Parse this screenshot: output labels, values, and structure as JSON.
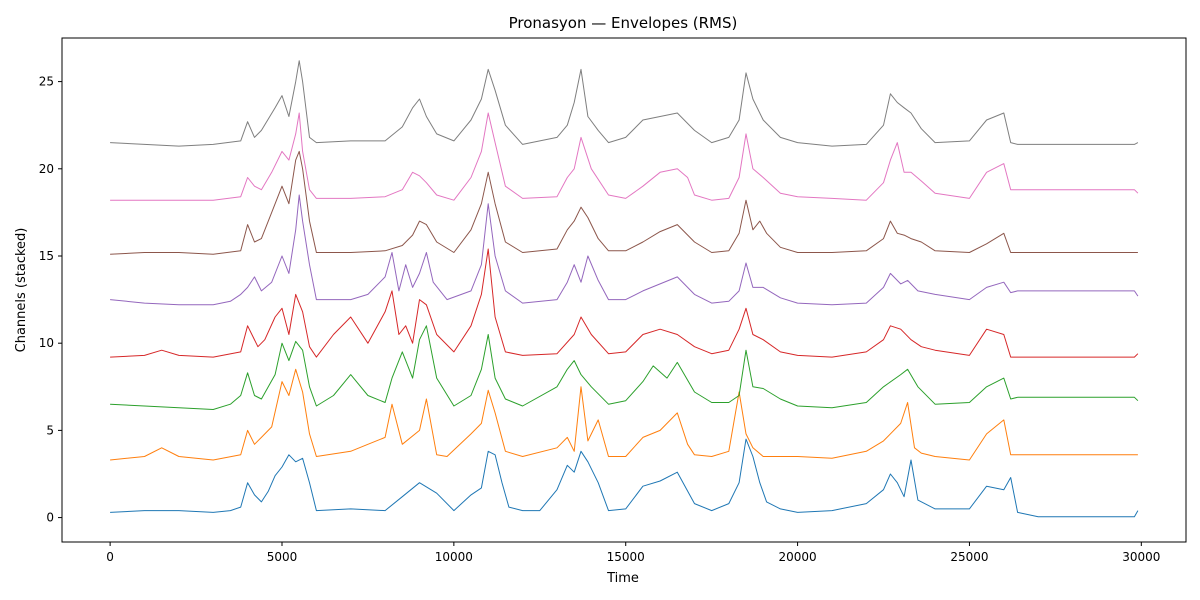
{
  "chart_data": {
    "type": "line",
    "title": "Pronasyon — Envelopes (RMS)",
    "xlabel": "Time",
    "ylabel": "Channels (stacked)",
    "xlim": [
      -1400,
      31300
    ],
    "ylim": [
      -1.4,
      27.5
    ],
    "xticks": [
      0,
      5000,
      10000,
      15000,
      20000,
      25000,
      30000
    ],
    "yticks": [
      0,
      5,
      10,
      15,
      20,
      25
    ],
    "grid": false,
    "series": [
      {
        "color": "#1f77b4",
        "x": [
          0,
          1000,
          2000,
          3000,
          3500,
          3800,
          4000,
          4200,
          4400,
          4600,
          4800,
          5000,
          5200,
          5400,
          5600,
          5800,
          6000,
          7000,
          8000,
          8500,
          9000,
          9500,
          10000,
          10500,
          10800,
          11000,
          11200,
          11400,
          11600,
          12000,
          12500,
          13000,
          13300,
          13500,
          13700,
          13900,
          14200,
          14500,
          15000,
          15500,
          16000,
          16500,
          17000,
          17500,
          18000,
          18300,
          18500,
          18700,
          18900,
          19100,
          19500,
          20000,
          21000,
          22000,
          22500,
          22700,
          22900,
          23100,
          23300,
          23500,
          24000,
          25000,
          25500,
          26000,
          26200,
          26400,
          27000,
          29800,
          29900
        ],
        "values": [
          0.3,
          0.4,
          0.4,
          0.3,
          0.4,
          0.6,
          2.0,
          1.3,
          0.9,
          1.5,
          2.4,
          2.9,
          3.6,
          3.2,
          3.4,
          2.0,
          0.4,
          0.5,
          0.4,
          1.2,
          2.0,
          1.4,
          0.4,
          1.3,
          1.7,
          3.8,
          3.6,
          2.0,
          0.6,
          0.4,
          0.4,
          1.6,
          3.0,
          2.6,
          3.8,
          3.2,
          2.0,
          0.4,
          0.5,
          1.8,
          2.1,
          2.6,
          0.8,
          0.4,
          0.8,
          2.0,
          4.5,
          3.5,
          2.0,
          0.9,
          0.5,
          0.3,
          0.4,
          0.8,
          1.6,
          2.5,
          2.0,
          1.2,
          3.3,
          1.0,
          0.5,
          0.5,
          1.8,
          1.6,
          2.3,
          0.3,
          0.05,
          0.05,
          0.4
        ]
      },
      {
        "color": "#ff7f0e",
        "x": [
          0,
          1000,
          1500,
          2000,
          3000,
          3800,
          4000,
          4200,
          4400,
          4700,
          5000,
          5200,
          5400,
          5600,
          5800,
          6000,
          7000,
          7500,
          8000,
          8200,
          8500,
          9000,
          9200,
          9500,
          9800,
          10500,
          10800,
          11000,
          11200,
          11500,
          12000,
          13000,
          13300,
          13500,
          13700,
          13900,
          14200,
          14500,
          15000,
          15500,
          16000,
          16500,
          16800,
          17000,
          17500,
          18000,
          18300,
          18500,
          18700,
          19000,
          19500,
          20000,
          21000,
          22000,
          22500,
          23000,
          23200,
          23400,
          23600,
          24000,
          25000,
          25500,
          26000,
          26200,
          26500,
          29900
        ],
        "values": [
          3.3,
          3.5,
          4.0,
          3.5,
          3.3,
          3.6,
          5.0,
          4.2,
          4.6,
          5.2,
          7.8,
          7.0,
          8.5,
          7.2,
          4.8,
          3.5,
          3.8,
          4.2,
          4.6,
          6.5,
          4.2,
          5.0,
          6.8,
          3.6,
          3.5,
          4.8,
          5.4,
          7.3,
          6.0,
          3.8,
          3.5,
          4.0,
          4.6,
          3.8,
          7.5,
          4.4,
          5.6,
          3.5,
          3.5,
          4.6,
          5.0,
          6.0,
          4.2,
          3.6,
          3.5,
          3.8,
          7.2,
          4.8,
          4.0,
          3.5,
          3.5,
          3.5,
          3.4,
          3.8,
          4.4,
          5.4,
          6.6,
          4.0,
          3.7,
          3.5,
          3.3,
          4.8,
          5.6,
          3.6,
          3.6,
          3.6
        ]
      },
      {
        "color": "#2ca02c",
        "x": [
          0,
          1000,
          2000,
          3000,
          3500,
          3800,
          4000,
          4200,
          4400,
          4800,
          5000,
          5200,
          5400,
          5600,
          5800,
          6000,
          6500,
          7000,
          7500,
          8000,
          8200,
          8500,
          8800,
          9000,
          9200,
          9500,
          10000,
          10500,
          10800,
          11000,
          11200,
          11500,
          12000,
          13000,
          13300,
          13500,
          13700,
          14000,
          14500,
          15000,
          15500,
          15800,
          16200,
          16500,
          17000,
          17500,
          18000,
          18300,
          18500,
          18700,
          19000,
          19500,
          20000,
          21000,
          22000,
          22500,
          23000,
          23200,
          23500,
          24000,
          25000,
          25500,
          26000,
          26200,
          26400,
          27000,
          29800,
          29900
        ],
        "values": [
          6.5,
          6.4,
          6.3,
          6.2,
          6.5,
          7.0,
          8.3,
          7.0,
          6.8,
          8.2,
          10.0,
          9.0,
          10.1,
          9.6,
          7.5,
          6.4,
          7.0,
          8.2,
          7.0,
          6.6,
          8.0,
          9.5,
          8.0,
          10.2,
          11.0,
          8.0,
          6.4,
          7.0,
          8.5,
          10.5,
          8.0,
          6.8,
          6.4,
          7.5,
          8.5,
          9.0,
          8.2,
          7.5,
          6.5,
          6.7,
          7.8,
          8.7,
          8.0,
          8.9,
          7.2,
          6.6,
          6.6,
          7.0,
          9.6,
          7.5,
          7.4,
          6.8,
          6.4,
          6.3,
          6.6,
          7.5,
          8.2,
          8.5,
          7.5,
          6.5,
          6.6,
          7.5,
          8.0,
          6.8,
          6.9,
          6.9,
          6.9,
          6.7
        ]
      },
      {
        "color": "#d62728",
        "x": [
          0,
          1000,
          1500,
          2000,
          3000,
          3800,
          4000,
          4300,
          4500,
          4800,
          5000,
          5200,
          5400,
          5600,
          5800,
          6000,
          6500,
          7000,
          7500,
          8000,
          8200,
          8400,
          8600,
          8800,
          9000,
          9200,
          9500,
          10000,
          10500,
          10800,
          11000,
          11200,
          11500,
          12000,
          13000,
          13500,
          13700,
          14000,
          14500,
          15000,
          15500,
          16000,
          16500,
          17000,
          17500,
          18000,
          18300,
          18500,
          18700,
          19000,
          19500,
          20000,
          21000,
          22000,
          22500,
          22700,
          23000,
          23300,
          23600,
          24000,
          25000,
          25500,
          26000,
          26200,
          26400,
          29800,
          29900
        ],
        "values": [
          9.2,
          9.3,
          9.6,
          9.3,
          9.2,
          9.5,
          11.0,
          9.8,
          10.2,
          11.5,
          12.0,
          10.5,
          12.8,
          11.8,
          9.8,
          9.2,
          10.5,
          11.5,
          10.0,
          11.8,
          13.0,
          10.5,
          11.0,
          10.0,
          12.5,
          12.2,
          10.5,
          9.5,
          11.0,
          12.8,
          15.4,
          11.5,
          9.5,
          9.3,
          9.4,
          10.5,
          11.5,
          10.5,
          9.4,
          9.5,
          10.5,
          10.8,
          10.5,
          9.8,
          9.4,
          9.6,
          10.8,
          12.0,
          10.5,
          10.2,
          9.5,
          9.3,
          9.2,
          9.5,
          10.2,
          11.0,
          10.8,
          10.2,
          9.8,
          9.6,
          9.3,
          10.8,
          10.5,
          9.2,
          9.2,
          9.2,
          9.4
        ]
      },
      {
        "color": "#9467bd",
        "x": [
          0,
          1000,
          2000,
          3000,
          3500,
          3800,
          4000,
          4200,
          4400,
          4700,
          5000,
          5200,
          5400,
          5500,
          5600,
          5800,
          6000,
          7000,
          7500,
          8000,
          8200,
          8400,
          8600,
          8800,
          9000,
          9200,
          9400,
          9800,
          10500,
          10800,
          11000,
          11200,
          11500,
          12000,
          13000,
          13300,
          13500,
          13700,
          13900,
          14200,
          14500,
          15000,
          15500,
          16000,
          16500,
          17000,
          17500,
          18000,
          18300,
          18500,
          18700,
          19000,
          19500,
          20000,
          21000,
          22000,
          22500,
          22700,
          23000,
          23200,
          23500,
          24000,
          25000,
          25500,
          26000,
          26200,
          26400,
          29800,
          29900
        ],
        "values": [
          12.5,
          12.3,
          12.2,
          12.2,
          12.4,
          12.8,
          13.2,
          13.8,
          13.0,
          13.5,
          15.0,
          14.0,
          16.5,
          18.5,
          17.0,
          14.5,
          12.5,
          12.5,
          12.8,
          13.8,
          15.2,
          13.0,
          14.5,
          13.2,
          14.0,
          15.2,
          13.5,
          12.5,
          13.0,
          14.5,
          18.0,
          15.0,
          13.0,
          12.3,
          12.5,
          13.5,
          14.5,
          13.5,
          15.0,
          13.6,
          12.5,
          12.5,
          13.0,
          13.4,
          13.8,
          12.8,
          12.3,
          12.4,
          13.0,
          14.6,
          13.2,
          13.2,
          12.6,
          12.3,
          12.2,
          12.3,
          13.2,
          14.0,
          13.4,
          13.6,
          13.0,
          12.8,
          12.5,
          13.2,
          13.5,
          12.9,
          13.0,
          13.0,
          12.7
        ]
      },
      {
        "color": "#8c564b",
        "x": [
          0,
          1000,
          2000,
          3000,
          3800,
          4000,
          4200,
          4400,
          4700,
          5000,
          5200,
          5400,
          5500,
          5600,
          5800,
          6000,
          7000,
          8000,
          8500,
          8800,
          9000,
          9200,
          9500,
          10000,
          10500,
          10800,
          11000,
          11200,
          11500,
          12000,
          13000,
          13300,
          13500,
          13700,
          13900,
          14200,
          14500,
          15000,
          15500,
          16000,
          16500,
          17000,
          17500,
          18000,
          18300,
          18500,
          18700,
          18900,
          19100,
          19500,
          20000,
          21000,
          22000,
          22500,
          22700,
          22900,
          23100,
          23300,
          23600,
          24000,
          25000,
          25500,
          26000,
          26200,
          26400,
          29800,
          29900
        ],
        "values": [
          15.1,
          15.2,
          15.2,
          15.1,
          15.3,
          16.8,
          15.8,
          16.0,
          17.5,
          19.0,
          18.0,
          20.5,
          21.0,
          20.0,
          17.0,
          15.2,
          15.2,
          15.3,
          15.6,
          16.2,
          17.0,
          16.8,
          15.8,
          15.2,
          16.5,
          18.0,
          19.8,
          18.0,
          15.8,
          15.2,
          15.4,
          16.5,
          17.0,
          17.8,
          17.2,
          16.0,
          15.3,
          15.3,
          15.8,
          16.4,
          16.8,
          15.8,
          15.2,
          15.3,
          16.3,
          18.2,
          16.5,
          17.0,
          16.3,
          15.5,
          15.2,
          15.2,
          15.3,
          16.0,
          17.0,
          16.3,
          16.2,
          16.0,
          15.8,
          15.3,
          15.2,
          15.7,
          16.3,
          15.2,
          15.2,
          15.2,
          15.2
        ]
      },
      {
        "color": "#e377c2",
        "x": [
          0,
          1000,
          2000,
          3000,
          3800,
          4000,
          4200,
          4400,
          4700,
          5000,
          5200,
          5400,
          5500,
          5600,
          5800,
          6000,
          7000,
          8000,
          8500,
          8800,
          9000,
          9200,
          9500,
          10000,
          10500,
          10800,
          11000,
          11200,
          11500,
          12000,
          13000,
          13300,
          13500,
          13700,
          14000,
          14500,
          15000,
          15500,
          16000,
          16500,
          16800,
          17000,
          17500,
          18000,
          18300,
          18500,
          18700,
          19000,
          19500,
          20000,
          21000,
          22000,
          22500,
          22700,
          22900,
          23100,
          23300,
          23600,
          24000,
          25000,
          25500,
          26000,
          26200,
          26400,
          29800,
          29900
        ],
        "values": [
          18.2,
          18.2,
          18.2,
          18.2,
          18.4,
          19.5,
          19.0,
          18.8,
          19.8,
          21.0,
          20.5,
          22.0,
          23.2,
          21.0,
          18.8,
          18.3,
          18.3,
          18.4,
          18.8,
          19.8,
          19.6,
          19.2,
          18.5,
          18.2,
          19.5,
          21.0,
          23.2,
          21.5,
          19.0,
          18.3,
          18.4,
          19.5,
          20.0,
          21.8,
          20.0,
          18.5,
          18.3,
          19.0,
          19.8,
          20.0,
          19.5,
          18.5,
          18.2,
          18.3,
          19.5,
          22.0,
          20.0,
          19.5,
          18.6,
          18.4,
          18.3,
          18.2,
          19.2,
          20.5,
          21.5,
          19.8,
          19.8,
          19.3,
          18.6,
          18.3,
          19.8,
          20.3,
          18.8,
          18.8,
          18.8,
          18.6
        ]
      },
      {
        "color": "#7f7f7f",
        "x": [
          0,
          1000,
          2000,
          3000,
          3800,
          4000,
          4200,
          4400,
          4800,
          5000,
          5200,
          5400,
          5500,
          5600,
          5800,
          6000,
          7000,
          8000,
          8500,
          8800,
          9000,
          9200,
          9500,
          10000,
          10500,
          10800,
          11000,
          11200,
          11500,
          12000,
          13000,
          13300,
          13500,
          13700,
          13900,
          14200,
          14500,
          15000,
          15500,
          16000,
          16500,
          17000,
          17500,
          18000,
          18300,
          18500,
          18700,
          19000,
          19500,
          20000,
          21000,
          22000,
          22500,
          22700,
          22900,
          23100,
          23300,
          23600,
          24000,
          25000,
          25500,
          26000,
          26200,
          26400,
          29800,
          29900
        ],
        "values": [
          21.5,
          21.4,
          21.3,
          21.4,
          21.6,
          22.7,
          21.8,
          22.2,
          23.5,
          24.2,
          23.0,
          25.0,
          26.2,
          25.0,
          21.8,
          21.5,
          21.6,
          21.6,
          22.4,
          23.5,
          24.0,
          23.0,
          22.0,
          21.6,
          22.8,
          24.0,
          25.7,
          24.5,
          22.5,
          21.4,
          21.8,
          22.5,
          23.8,
          25.7,
          23.0,
          22.2,
          21.5,
          21.8,
          22.8,
          23.0,
          23.2,
          22.2,
          21.5,
          21.8,
          22.8,
          25.5,
          24.0,
          22.8,
          21.8,
          21.5,
          21.3,
          21.4,
          22.5,
          24.3,
          23.8,
          23.5,
          23.2,
          22.3,
          21.5,
          21.6,
          22.8,
          23.2,
          21.5,
          21.4,
          21.4,
          21.5
        ]
      }
    ]
  }
}
